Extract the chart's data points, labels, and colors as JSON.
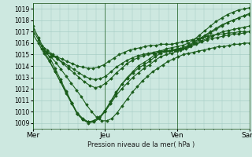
{
  "background_color": "#cde8e0",
  "grid_color": "#a0c8c0",
  "line_color": "#1a5c1a",
  "marker": "D",
  "ylabel": "Pression niveau de la mer( hPa )",
  "ylim": [
    1008.5,
    1019.5
  ],
  "yticks": [
    1009,
    1010,
    1011,
    1012,
    1013,
    1014,
    1015,
    1016,
    1017,
    1018,
    1019
  ],
  "xlabels": [
    "Mer",
    "Jeu",
    "Ven",
    "Sam"
  ],
  "xtick_positions": [
    0,
    96,
    192,
    288
  ],
  "total_points": 288,
  "series": [
    {
      "start": 0,
      "points": [
        1017.5,
        1016.5,
        1015.5,
        1014.8,
        1013.8,
        1012.8,
        1011.8,
        1010.8,
        1009.8,
        1009.3,
        1009.0,
        1009.1,
        1009.4,
        1010.0,
        1010.8,
        1011.6,
        1012.4,
        1013.0,
        1013.5,
        1014.0,
        1014.3,
        1014.6,
        1015.0,
        1015.3,
        1015.5,
        1015.6,
        1015.7,
        1015.8,
        1016.0,
        1016.3,
        1016.7,
        1017.1,
        1017.5,
        1017.9,
        1018.2,
        1018.5,
        1018.7,
        1018.9,
        1019.0,
        1019.1
      ]
    },
    {
      "start": 0,
      "points": [
        1017.2,
        1016.3,
        1015.3,
        1014.5,
        1013.5,
        1012.6,
        1011.6,
        1010.7,
        1009.8,
        1009.3,
        1009.1,
        1009.2,
        1009.5,
        1010.1,
        1010.9,
        1011.7,
        1012.4,
        1012.9,
        1013.4,
        1013.8,
        1014.1,
        1014.4,
        1014.8,
        1015.1,
        1015.3,
        1015.4,
        1015.5,
        1015.6,
        1015.8,
        1016.1,
        1016.4,
        1016.7,
        1017.0,
        1017.3,
        1017.6,
        1017.8,
        1018.0,
        1018.2,
        1018.4,
        1018.6
      ]
    },
    {
      "start": 0,
      "points": [
        1016.8,
        1016.0,
        1015.1,
        1014.4,
        1013.5,
        1012.6,
        1011.7,
        1010.8,
        1009.9,
        1009.4,
        1009.1,
        1009.2,
        1009.5,
        1010.0,
        1010.7,
        1011.4,
        1012.0,
        1012.5,
        1013.0,
        1013.4,
        1013.8,
        1014.1,
        1014.5,
        1014.8,
        1015.0,
        1015.1,
        1015.3,
        1015.5,
        1015.7,
        1016.0,
        1016.3,
        1016.6,
        1016.9,
        1017.2,
        1017.5,
        1017.8,
        1018.0,
        1018.2,
        1018.4,
        1018.5
      ]
    },
    {
      "start": 12,
      "points": [
        1015.8,
        1015.4,
        1015.0,
        1014.6,
        1014.2,
        1013.8,
        1013.4,
        1013.0,
        1012.6,
        1012.3,
        1012.1,
        1012.2,
        1012.5,
        1012.9,
        1013.4,
        1013.8,
        1014.2,
        1014.5,
        1014.7,
        1014.9,
        1015.0,
        1015.1,
        1015.2,
        1015.3,
        1015.3,
        1015.4,
        1015.5,
        1015.6,
        1015.8,
        1016.0,
        1016.2,
        1016.4,
        1016.6,
        1016.8,
        1017.0,
        1017.1,
        1017.2,
        1017.3,
        1017.4,
        1017.5
      ]
    },
    {
      "start": 12,
      "points": [
        1015.5,
        1015.2,
        1014.9,
        1014.6,
        1014.3,
        1014.0,
        1013.7,
        1013.4,
        1013.1,
        1012.9,
        1012.8,
        1012.9,
        1013.1,
        1013.5,
        1013.9,
        1014.2,
        1014.5,
        1014.7,
        1014.9,
        1015.0,
        1015.1,
        1015.2,
        1015.3,
        1015.3,
        1015.3,
        1015.4,
        1015.4,
        1015.5,
        1015.7,
        1015.9,
        1016.1,
        1016.3,
        1016.4,
        1016.5,
        1016.6,
        1016.7,
        1016.8,
        1016.8,
        1016.9,
        1017.0
      ]
    },
    {
      "start": 18,
      "points": [
        1015.2,
        1015.0,
        1014.8,
        1014.6,
        1014.4,
        1014.2,
        1014.0,
        1013.9,
        1013.8,
        1013.8,
        1013.9,
        1014.1,
        1014.4,
        1014.7,
        1015.0,
        1015.2,
        1015.4,
        1015.5,
        1015.6,
        1015.7,
        1015.8,
        1015.8,
        1015.9,
        1015.9,
        1015.9,
        1016.0,
        1016.1,
        1016.2,
        1016.3,
        1016.4,
        1016.5,
        1016.6,
        1016.7,
        1016.8,
        1016.8,
        1016.9,
        1016.9,
        1017.0,
        1017.0,
        1017.0
      ]
    },
    {
      "start": 24,
      "points": [
        1014.8,
        1014.3,
        1013.7,
        1013.1,
        1012.5,
        1011.9,
        1011.3,
        1010.6,
        1010.0,
        1009.5,
        1009.2,
        1009.2,
        1009.4,
        1009.9,
        1010.5,
        1011.1,
        1011.7,
        1012.2,
        1012.7,
        1013.1,
        1013.5,
        1013.8,
        1014.1,
        1014.4,
        1014.6,
        1014.8,
        1015.0,
        1015.1,
        1015.2,
        1015.3,
        1015.4,
        1015.5,
        1015.6,
        1015.7,
        1015.7,
        1015.8,
        1015.9,
        1015.9,
        1016.0,
        1016.0
      ]
    }
  ]
}
